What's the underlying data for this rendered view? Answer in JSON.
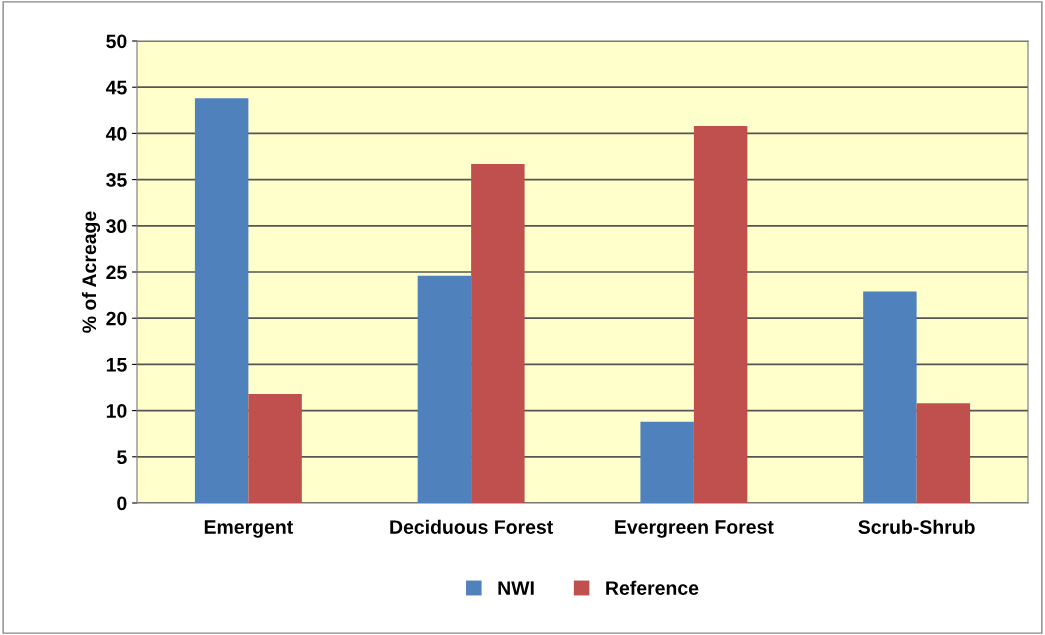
{
  "chart_data": {
    "type": "bar",
    "ylabel": "% of Acreage",
    "categories": [
      "Emergent",
      "Deciduous Forest",
      "Evergreen Forest",
      "Scrub-Shrub"
    ],
    "series": [
      {
        "name": "NWI",
        "color": "#4f81bd",
        "values": [
          43.8,
          24.6,
          8.8,
          22.9
        ]
      },
      {
        "name": "Reference",
        "color": "#c0504d",
        "values": [
          11.8,
          36.7,
          40.8,
          10.8
        ]
      }
    ],
    "ylim": [
      0,
      50
    ],
    "yticks": [
      0,
      5,
      10,
      15,
      20,
      25,
      30,
      35,
      40,
      45,
      50
    ],
    "grid": "y",
    "legend": "bottom"
  }
}
